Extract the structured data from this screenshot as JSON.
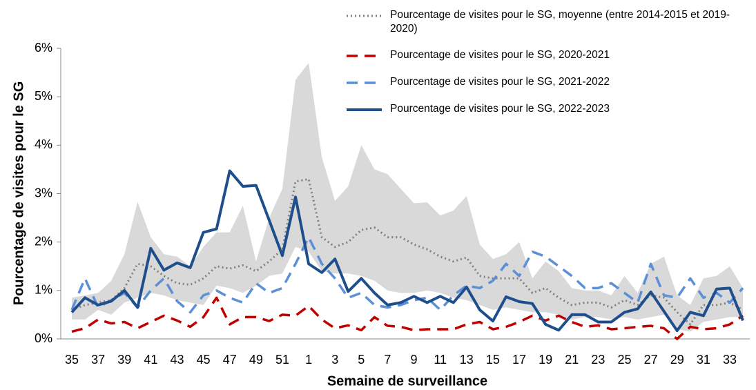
{
  "chart_data": {
    "type": "line",
    "y_label": "Pourcentage de visites pour le SG",
    "x_label": "Semaine de surveillance",
    "categories": [
      "35",
      null,
      "37",
      null,
      "39",
      null,
      "41",
      null,
      "43",
      null,
      "45",
      null,
      "47",
      null,
      "49",
      null,
      "51",
      null,
      "1",
      null,
      "3",
      null,
      "5",
      null,
      "7",
      null,
      "9",
      null,
      "11",
      null,
      "13",
      null,
      "15",
      null,
      "17",
      null,
      "19",
      null,
      "21",
      null,
      "23",
      null,
      "25",
      null,
      "27",
      null,
      "29",
      null,
      "31",
      null,
      "33",
      null
    ],
    "ylim": [
      0,
      6
    ],
    "yticks": [
      {
        "value": 0,
        "label": "0%"
      },
      {
        "value": 1,
        "label": "1%"
      },
      {
        "value": 2,
        "label": "2%"
      },
      {
        "value": 3,
        "label": "3%"
      },
      {
        "value": 4,
        "label": "4%"
      },
      {
        "value": 5,
        "label": "5%"
      },
      {
        "value": 6,
        "label": "6%"
      }
    ],
    "legend": "top-right",
    "band": {
      "color": "#d9d9d9",
      "high": [
        0.85,
        0.9,
        0.95,
        1.2,
        1.75,
        2.83,
        2.1,
        1.75,
        1.7,
        1.5,
        1.9,
        2.2,
        2.2,
        2.75,
        1.6,
        2.5,
        3.1,
        5.35,
        5.7,
        3.75,
        2.85,
        3.15,
        4.0,
        3.5,
        3.4,
        3.1,
        2.8,
        2.82,
        2.55,
        2.65,
        2.95,
        1.95,
        1.65,
        1.75,
        2.0,
        1.25,
        1.6,
        1.4,
        1.05,
        1.0,
        1.0,
        0.9,
        1.3,
        0.95,
        1.55,
        1.7,
        0.9,
        0.7,
        1.25,
        1.3,
        1.5,
        1.05
      ],
      "low": [
        0.4,
        0.4,
        0.6,
        0.5,
        0.75,
        0.85,
        0.95,
        0.9,
        0.8,
        0.75,
        0.7,
        1.1,
        1.05,
        0.95,
        1.1,
        1.3,
        1.35,
        1.9,
        1.8,
        1.4,
        1.35,
        1.35,
        1.3,
        1.2,
        1.0,
        0.95,
        0.95,
        1.0,
        0.95,
        0.85,
        0.8,
        0.7,
        0.6,
        0.65,
        0.6,
        0.55,
        0.55,
        0.5,
        0.4,
        0.45,
        0.45,
        0.4,
        0.45,
        0.4,
        0.45,
        0.5,
        0.2,
        0.15,
        0.35,
        0.4,
        0.45,
        0.45
      ]
    },
    "series": [
      {
        "name": "Pourcentage de visites pour le SG, moyenne (entre 2014-2015 et 2019-2020)",
        "color": "#808080",
        "dash": "dotted",
        "values": [
          0.6,
          0.7,
          0.75,
          0.8,
          1.05,
          1.55,
          1.5,
          1.3,
          1.15,
          1.12,
          1.25,
          1.5,
          1.45,
          1.52,
          1.4,
          1.6,
          1.85,
          3.25,
          3.3,
          2.1,
          1.9,
          2.0,
          2.25,
          2.3,
          2.1,
          2.1,
          1.95,
          1.85,
          1.7,
          1.6,
          1.68,
          1.3,
          1.25,
          1.25,
          1.25,
          0.95,
          1.05,
          0.85,
          0.7,
          0.75,
          0.75,
          0.65,
          0.8,
          0.7,
          0.9,
          0.85,
          0.55,
          0.3,
          0.7,
          0.7,
          0.75,
          0.6
        ]
      },
      {
        "name": "Pourcentage de visites pour le SG, 2020-2021",
        "color": "#c00000",
        "dash": "dashed",
        "values": [
          0.15,
          0.22,
          0.4,
          0.32,
          0.35,
          0.22,
          0.35,
          0.48,
          0.38,
          0.25,
          0.45,
          0.85,
          0.3,
          0.45,
          0.45,
          0.37,
          0.5,
          0.48,
          0.68,
          0.4,
          0.22,
          0.28,
          0.18,
          0.45,
          0.27,
          0.25,
          0.18,
          0.2,
          0.2,
          0.2,
          0.3,
          0.35,
          0.2,
          0.25,
          0.35,
          0.48,
          0.38,
          0.48,
          0.35,
          0.25,
          0.28,
          0.2,
          0.22,
          0.25,
          0.27,
          0.22,
          0.0,
          0.25,
          0.2,
          0.22,
          0.3,
          0.48
        ]
      },
      {
        "name": "Pourcentage de visites pour le SG, 2021-2022",
        "color": "#5b8fd6",
        "dash": "dashed",
        "values": [
          0.6,
          1.25,
          0.65,
          0.8,
          0.95,
          0.65,
          1.0,
          1.25,
          0.78,
          0.55,
          0.9,
          1.0,
          0.85,
          0.75,
          1.15,
          0.95,
          1.05,
          1.55,
          2.1,
          1.55,
          1.25,
          0.85,
          0.95,
          0.7,
          0.65,
          0.7,
          0.8,
          0.85,
          0.6,
          0.9,
          1.1,
          1.05,
          1.2,
          1.55,
          1.3,
          1.8,
          1.7,
          1.5,
          1.3,
          1.05,
          1.05,
          1.15,
          0.95,
          0.75,
          1.55,
          0.9,
          0.85,
          1.25,
          0.85,
          0.95,
          0.75,
          1.05
        ]
      },
      {
        "name": "Pourcentage de visites pour le SG, 2022-2023",
        "color": "#1f4e8c",
        "dash": "solid",
        "values": [
          0.55,
          0.85,
          0.7,
          0.78,
          1.0,
          0.65,
          1.87,
          1.42,
          1.57,
          1.47,
          2.2,
          2.27,
          3.47,
          3.15,
          3.17,
          2.45,
          1.72,
          2.93,
          1.55,
          1.37,
          1.65,
          0.98,
          1.25,
          0.95,
          0.7,
          0.75,
          0.88,
          0.75,
          0.88,
          0.75,
          1.07,
          0.6,
          0.37,
          0.87,
          0.77,
          0.73,
          0.3,
          0.18,
          0.5,
          0.5,
          0.35,
          0.35,
          0.55,
          0.62,
          0.97,
          0.57,
          0.17,
          0.55,
          0.48,
          1.03,
          1.05,
          0.38
        ]
      }
    ]
  }
}
